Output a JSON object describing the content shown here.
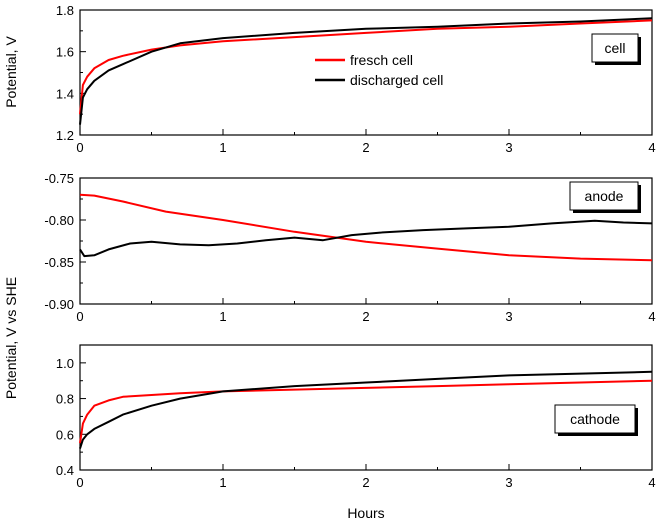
{
  "figure": {
    "y_label_top": "Potential, V",
    "y_label_bottom": "Potential, V vs SHE",
    "x_label": "Hours"
  },
  "chart_data": [
    {
      "type": "line",
      "panel": "cell",
      "box_label": "cell",
      "xlim": [
        0,
        4
      ],
      "ylim": [
        1.2,
        1.8
      ],
      "x_ticks": [
        0,
        1,
        2,
        3,
        4
      ],
      "y_ticks": [
        1.2,
        1.4,
        1.6,
        1.8
      ],
      "y_tick_labels": [
        "1.2",
        "1.4",
        "1.6",
        "1.8"
      ],
      "legend": {
        "position": "top-center"
      },
      "series": [
        {
          "name": "fresch cell",
          "color": "#ff0000",
          "x": [
            0,
            0.02,
            0.05,
            0.1,
            0.2,
            0.3,
            0.5,
            0.7,
            1.0,
            1.5,
            2.0,
            2.5,
            3.0,
            3.5,
            4.0
          ],
          "y": [
            1.3,
            1.44,
            1.48,
            1.52,
            1.56,
            1.58,
            1.61,
            1.63,
            1.65,
            1.67,
            1.69,
            1.71,
            1.72,
            1.735,
            1.75
          ]
        },
        {
          "name": "discharged cell",
          "color": "#000000",
          "x": [
            0,
            0.02,
            0.05,
            0.1,
            0.2,
            0.3,
            0.5,
            0.7,
            1.0,
            1.5,
            2.0,
            2.5,
            3.0,
            3.5,
            4.0
          ],
          "y": [
            1.25,
            1.38,
            1.42,
            1.46,
            1.51,
            1.54,
            1.6,
            1.64,
            1.665,
            1.69,
            1.71,
            1.72,
            1.735,
            1.745,
            1.76
          ]
        }
      ]
    },
    {
      "type": "line",
      "panel": "anode",
      "box_label": "anode",
      "xlim": [
        0,
        4
      ],
      "ylim": [
        -0.9,
        -0.75
      ],
      "x_ticks": [
        0,
        1,
        2,
        3,
        4
      ],
      "y_ticks": [
        -0.75,
        -0.8,
        -0.85,
        -0.9
      ],
      "y_tick_labels": [
        "-0.75",
        "-0.80",
        "-0.85",
        "-0.90"
      ],
      "series": [
        {
          "name": "fresch cell",
          "color": "#ff0000",
          "x": [
            0,
            0.1,
            0.3,
            0.6,
            1.0,
            1.5,
            2.0,
            2.5,
            3.0,
            3.5,
            4.0
          ],
          "y": [
            -0.77,
            -0.771,
            -0.778,
            -0.79,
            -0.8,
            -0.814,
            -0.826,
            -0.834,
            -0.842,
            -0.846,
            -0.848
          ]
        },
        {
          "name": "discharged cell",
          "color": "#000000",
          "x": [
            0,
            0.03,
            0.1,
            0.2,
            0.35,
            0.5,
            0.7,
            0.9,
            1.1,
            1.3,
            1.5,
            1.7,
            1.9,
            2.1,
            2.4,
            2.7,
            3.0,
            3.3,
            3.6,
            3.8,
            4.0
          ],
          "y": [
            -0.835,
            -0.843,
            -0.842,
            -0.835,
            -0.828,
            -0.826,
            -0.829,
            -0.83,
            -0.828,
            -0.824,
            -0.821,
            -0.824,
            -0.818,
            -0.815,
            -0.812,
            -0.81,
            -0.808,
            -0.804,
            -0.801,
            -0.803,
            -0.804
          ]
        }
      ]
    },
    {
      "type": "line",
      "panel": "cathode",
      "box_label": "cathode",
      "xlim": [
        0,
        4
      ],
      "ylim": [
        0.4,
        1.1
      ],
      "x_ticks": [
        0,
        1,
        2,
        3,
        4
      ],
      "x_tick_labels": [
        "0",
        "1",
        "2",
        "3",
        "4"
      ],
      "y_ticks": [
        0.4,
        0.6,
        0.8,
        1.0
      ],
      "y_tick_labels": [
        "0.4",
        "0.6",
        "0.8",
        "1.0"
      ],
      "series": [
        {
          "name": "fresch cell",
          "color": "#ff0000",
          "x": [
            0,
            0.02,
            0.05,
            0.1,
            0.2,
            0.3,
            0.5,
            0.7,
            1.0,
            1.5,
            2.0,
            2.5,
            3.0,
            3.5,
            4.0
          ],
          "y": [
            0.55,
            0.66,
            0.71,
            0.76,
            0.79,
            0.81,
            0.82,
            0.83,
            0.84,
            0.85,
            0.86,
            0.87,
            0.88,
            0.89,
            0.9
          ]
        },
        {
          "name": "discharged cell",
          "color": "#000000",
          "x": [
            0,
            0.02,
            0.05,
            0.1,
            0.2,
            0.3,
            0.5,
            0.7,
            1.0,
            1.5,
            2.0,
            2.5,
            3.0,
            3.5,
            4.0
          ],
          "y": [
            0.52,
            0.57,
            0.6,
            0.63,
            0.67,
            0.71,
            0.76,
            0.8,
            0.84,
            0.87,
            0.89,
            0.91,
            0.93,
            0.94,
            0.95
          ]
        }
      ]
    }
  ]
}
